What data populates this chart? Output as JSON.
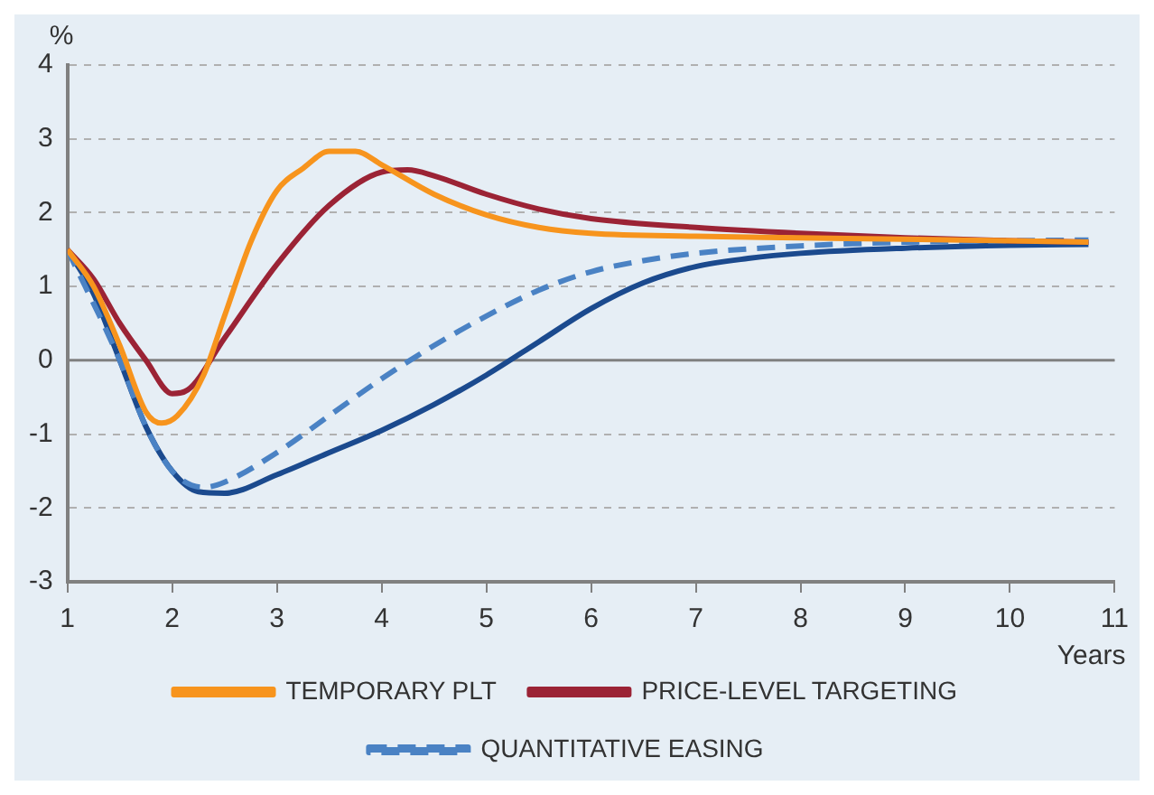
{
  "chart_data": {
    "type": "line",
    "xlabel": "Years",
    "ylabel": "%",
    "xlim": [
      1,
      11
    ],
    "xticks": [
      1,
      2,
      3,
      4,
      5,
      6,
      7,
      8,
      9,
      10,
      11
    ],
    "ylim": [
      -3,
      4
    ],
    "yticks": [
      -3,
      -2,
      -1,
      0,
      1,
      2,
      3,
      4
    ],
    "grid": "y",
    "legend": "bottom",
    "marker": "none",
    "ref_lines": [
      {
        "axis": "y",
        "value": 0,
        "color": "#808080"
      }
    ],
    "series": [
      {
        "color": "#1b4a8e",
        "line_style": "solid",
        "x": [
          1,
          1.25,
          1.5,
          1.75,
          2,
          2.25,
          2.5,
          3,
          3.5,
          4,
          4.5,
          5,
          5.5,
          6,
          6.5,
          7,
          7.5,
          8,
          9,
          10,
          10.75
        ],
        "values": [
          1.5,
          0.9,
          0,
          -0.9,
          -1.5,
          -1.78,
          -1.8,
          -1.55,
          -1.25,
          -0.95,
          -0.6,
          -0.2,
          0.25,
          0.7,
          1.05,
          1.27,
          1.38,
          1.45,
          1.52,
          1.56,
          1.57
        ]
      },
      {
        "name": "QUANTITATIVE EASING",
        "color": "#4a82c4",
        "line_style": "dashed",
        "x": [
          1,
          1.5,
          1.75,
          2,
          2.3,
          2.5,
          3,
          3.5,
          4,
          4.5,
          5,
          5.5,
          6,
          6.5,
          7,
          8,
          9,
          10,
          10.75
        ],
        "values": [
          1.5,
          0,
          -0.9,
          -1.5,
          -1.72,
          -1.65,
          -1.25,
          -0.75,
          -0.25,
          0.2,
          0.6,
          0.95,
          1.2,
          1.35,
          1.45,
          1.55,
          1.6,
          1.62,
          1.63
        ]
      },
      {
        "name": "PRICE-LEVEL TARGETING",
        "color": "#9b2335",
        "line_style": "solid",
        "x": [
          1,
          1.25,
          1.5,
          1.75,
          2,
          2.15,
          2.5,
          3,
          3.5,
          4,
          4.25,
          4.5,
          5,
          5.5,
          6,
          7,
          8,
          9,
          10,
          10.75
        ],
        "values": [
          1.5,
          1.1,
          0.5,
          0,
          -0.45,
          -0.4,
          0.3,
          1.3,
          2.1,
          2.55,
          2.58,
          2.5,
          2.25,
          2.05,
          1.92,
          1.8,
          1.72,
          1.66,
          1.62,
          1.6
        ]
      },
      {
        "name": "TEMPORARY PLT",
        "color": "#f7941d",
        "line_style": "solid",
        "x": [
          1,
          1.25,
          1.5,
          1.75,
          1.9,
          2.05,
          2.3,
          2.5,
          2.75,
          3,
          3.25,
          3.5,
          3.75,
          4,
          4.5,
          5,
          5.5,
          6,
          7,
          8,
          10,
          10.75
        ],
        "values": [
          1.5,
          1.0,
          0.2,
          -0.7,
          -0.85,
          -0.75,
          -0.2,
          0.6,
          1.6,
          2.3,
          2.6,
          2.83,
          2.83,
          2.65,
          2.25,
          1.97,
          1.8,
          1.72,
          1.68,
          1.66,
          1.62,
          1.6
        ]
      }
    ]
  }
}
